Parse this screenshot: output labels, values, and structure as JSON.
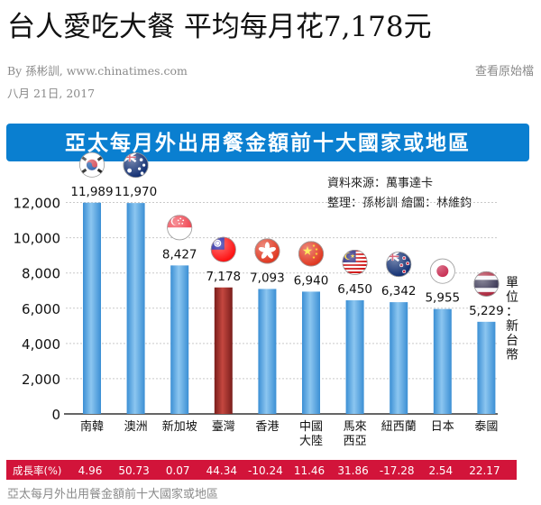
{
  "article": {
    "headline": "台人愛吃大餐 平均每月花7,178元",
    "by_prefix": "By",
    "author": "孫彬訓",
    "site": "www.chinatimes.com",
    "view_original": "查看原始檔",
    "date": "八月 21日, 2017",
    "caption": "亞太每月外出用餐金額前十大國家或地區"
  },
  "colors": {
    "banner": "#0a7fd0",
    "bar": "#5ba8e0",
    "bar_highlight": "#a3302c",
    "growth_bar": "#d2143a"
  },
  "chart_data": {
    "type": "bar",
    "title": "亞太每月外出用餐金額前十大國家或地區",
    "source": "資料來源：萬事達卡",
    "credit": "整理：孫彬訓  繪圖：林維鈞",
    "unit": "單位：新台幣",
    "categories": [
      "南韓",
      "澳洲",
      "新加坡",
      "臺灣",
      "香港",
      "中國大陸",
      "馬來西亞",
      "紐西蘭",
      "日本",
      "泰國"
    ],
    "category_lines": [
      [
        "南韓"
      ],
      [
        "澳洲"
      ],
      [
        "新加坡"
      ],
      [
        "臺灣"
      ],
      [
        "香港"
      ],
      [
        "中國",
        "大陸"
      ],
      [
        "馬來",
        "西亞"
      ],
      [
        "紐西蘭"
      ],
      [
        "日本"
      ],
      [
        "泰國"
      ]
    ],
    "values": [
      11989,
      11970,
      8427,
      7178,
      7093,
      6940,
      6450,
      6342,
      5955,
      5229
    ],
    "value_labels": [
      "11,989",
      "11,970",
      "8,427",
      "7,178",
      "7,093",
      "6,940",
      "6,450",
      "6,342",
      "5,955",
      "5,229"
    ],
    "highlight_index": 3,
    "flags": [
      "south-korea-flag",
      "australia-flag",
      "singapore-flag",
      "taiwan-flag",
      "hong-kong-flag",
      "china-flag",
      "malaysia-flag",
      "new-zealand-flag",
      "japan-flag",
      "thailand-flag"
    ],
    "yticks": [
      "0",
      "2,000",
      "4,000",
      "6,000",
      "8,000",
      "10,000",
      "12,000"
    ],
    "ytick_values": [
      0,
      2000,
      4000,
      6000,
      8000,
      10000,
      12000
    ],
    "ylim": [
      0,
      13000
    ],
    "growth_label": "成長率(%)",
    "growth": [
      "4.96",
      "50.73",
      "0.07",
      "44.34",
      "-10.24",
      "11.46",
      "31.86",
      "-17.28",
      "2.54",
      "22.17"
    ]
  }
}
